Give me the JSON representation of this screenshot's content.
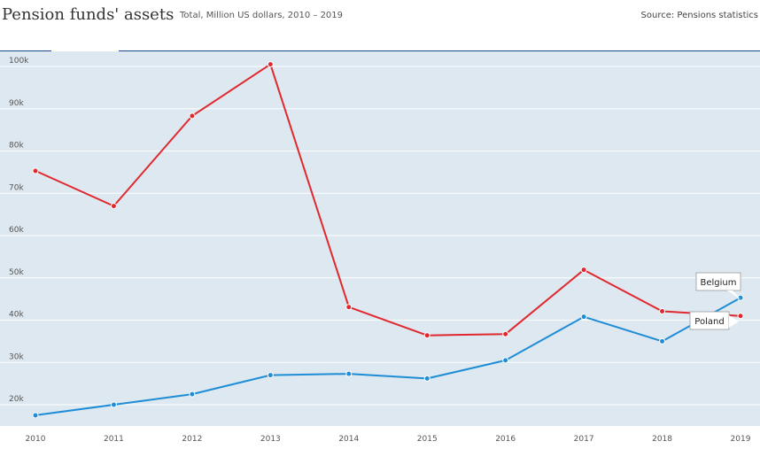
{
  "header": {
    "title": "Pension funds' assets",
    "subtitle": "Total, Million US dollars, 2010 – 2019",
    "source": "Source: Pensions statistics"
  },
  "colors": {
    "background": "#dde8f0",
    "grid": "#ffffff",
    "accent_rule": "#1a4f8b",
    "belgium": "#1f8dd6",
    "poland": "#e0282e"
  },
  "chart_data": {
    "type": "line",
    "x": [
      2010,
      2011,
      2012,
      2013,
      2014,
      2015,
      2016,
      2017,
      2018,
      2019
    ],
    "x_tick_labels": [
      "2010",
      "2011",
      "2012",
      "2013",
      "2014",
      "2015",
      "2016",
      "2017",
      "2018",
      "2019"
    ],
    "y_ticks": [
      20000,
      30000,
      40000,
      50000,
      60000,
      70000,
      80000,
      90000,
      100000
    ],
    "y_tick_labels": [
      "20k",
      "30k",
      "40k",
      "50k",
      "60k",
      "70k",
      "80k",
      "90k",
      "100k"
    ],
    "ylim": [
      16000,
      104000
    ],
    "grid": true,
    "series": [
      {
        "name": "Belgium",
        "color": "#1f8dd6",
        "values": [
          17500,
          20000,
          22500,
          27000,
          27300,
          26200,
          30500,
          40800,
          35000,
          45300
        ]
      },
      {
        "name": "Poland",
        "color": "#e0282e",
        "values": [
          75300,
          67000,
          88300,
          100500,
          43100,
          36400,
          36700,
          51900,
          42100,
          41000
        ]
      }
    ]
  }
}
